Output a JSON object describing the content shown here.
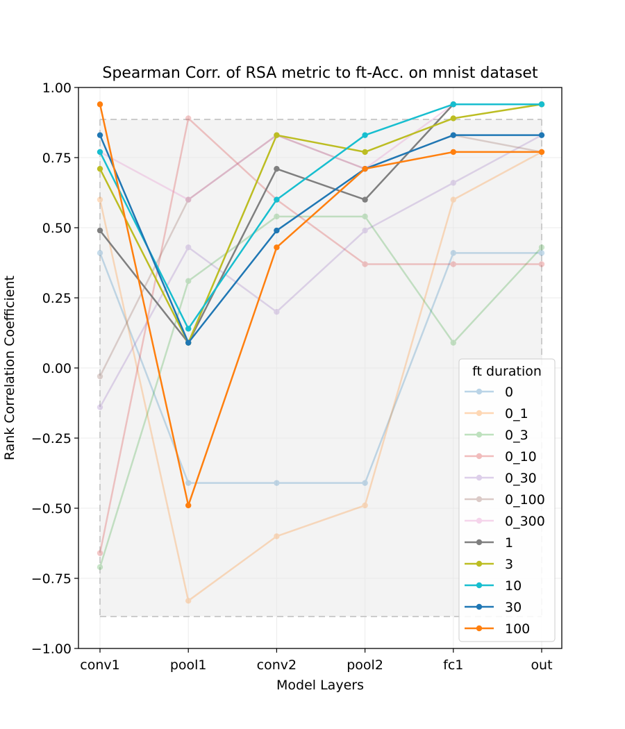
{
  "chart_data": {
    "type": "line",
    "title": "Spearman Corr. of RSA metric to ft-Acc. on mnist dataset",
    "xlabel": "Model Layers",
    "ylabel": "Rank Correlation Coefficient",
    "categories": [
      "conv1",
      "pool1",
      "conv2",
      "pool2",
      "fc1",
      "out"
    ],
    "ylim": [
      -1.0,
      1.0
    ],
    "yticks": [
      "−1.00",
      "−0.75",
      "−0.50",
      "−0.25",
      "0.00",
      "0.25",
      "0.50",
      "0.75",
      "1.00"
    ],
    "ytick_values": [
      -1.0,
      -0.75,
      -0.5,
      -0.25,
      0.0,
      0.25,
      0.5,
      0.75,
      1.0
    ],
    "grid": true,
    "shaded_band": [
      -0.886,
      0.886
    ],
    "legend": {
      "title": "ft duration",
      "placement": "lower-right"
    },
    "series": [
      {
        "name": "0",
        "color": "#1f77b4",
        "faded": true,
        "values": [
          0.41,
          -0.41,
          -0.41,
          -0.41,
          0.41,
          0.41
        ]
      },
      {
        "name": "0_1",
        "color": "#ff7f0e",
        "faded": true,
        "values": [
          0.6,
          -0.83,
          -0.6,
          -0.49,
          0.6,
          0.77
        ]
      },
      {
        "name": "0_3",
        "color": "#2ca02c",
        "faded": true,
        "values": [
          -0.71,
          0.31,
          0.54,
          0.54,
          0.09,
          0.43
        ]
      },
      {
        "name": "0_10",
        "color": "#d62728",
        "faded": true,
        "values": [
          -0.66,
          0.89,
          0.6,
          0.37,
          0.37,
          0.37
        ]
      },
      {
        "name": "0_30",
        "color": "#9467bd",
        "faded": true,
        "values": [
          -0.14,
          0.43,
          0.2,
          0.49,
          0.66,
          0.83
        ]
      },
      {
        "name": "0_100",
        "color": "#8c564b",
        "faded": true,
        "values": [
          -0.03,
          0.6,
          0.83,
          0.71,
          0.83,
          0.77
        ]
      },
      {
        "name": "0_300",
        "color": "#e377c2",
        "faded": true,
        "values": [
          0.77,
          0.6,
          0.83,
          0.71,
          0.94,
          0.94
        ]
      },
      {
        "name": "1",
        "color": "#7f7f7f",
        "faded": false,
        "values": [
          0.49,
          0.09,
          0.71,
          0.6,
          0.94,
          0.94
        ]
      },
      {
        "name": "3",
        "color": "#bcbd22",
        "faded": false,
        "values": [
          0.71,
          0.09,
          0.83,
          0.77,
          0.89,
          0.94
        ]
      },
      {
        "name": "10",
        "color": "#17becf",
        "faded": false,
        "values": [
          0.77,
          0.14,
          0.6,
          0.83,
          0.94,
          0.94
        ]
      },
      {
        "name": "30",
        "color": "#1f77b4",
        "faded": false,
        "values": [
          0.83,
          0.09,
          0.49,
          0.71,
          0.83,
          0.83
        ]
      },
      {
        "name": "100",
        "color": "#ff7f0e",
        "faded": false,
        "values": [
          0.94,
          -0.49,
          0.43,
          0.71,
          0.77,
          0.77
        ]
      }
    ]
  }
}
